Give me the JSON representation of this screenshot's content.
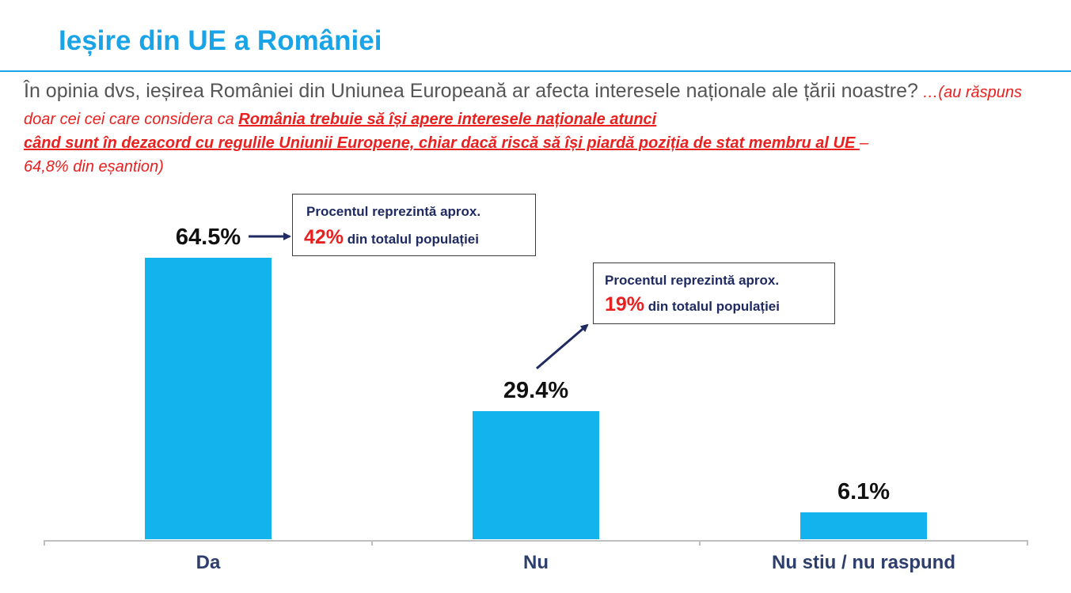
{
  "header": {
    "title": "Ieșire din UE a României",
    "question": "În opinia dvs, ieșirea României din Uniunea Europeană ar afecta interesele naționale ale țării noastre?",
    "note_prefix": " …(au răspuns doar cei cei care considera ca ",
    "note_underlined_line1": "România trebuie să își apere interesele naționale atunci",
    "note_underlined_line2": "când sunt în dezacord cu regulile Uniunii Europene, chiar dacă riscă să își piardă poziția de stat membru al UE ",
    "note_dash": "–",
    "note_suffix": "64,8% din eșantion)"
  },
  "chart_data": {
    "type": "bar",
    "categories": [
      "Da",
      "Nu",
      "Nu stiu / nu raspund"
    ],
    "values": [
      64.5,
      29.4,
      6.1
    ],
    "value_labels": [
      "64.5%",
      "29.4%",
      "6.1%"
    ],
    "ylim": [
      0,
      70
    ],
    "grid": false,
    "bar_color": "#13b4ee",
    "annotations": [
      {
        "target": "Da",
        "line1": "Procentul reprezintă aprox.",
        "pct": "42%",
        "line2": "din totalul populației"
      },
      {
        "target": "Nu",
        "line1": "Procentul reprezintă aprox.",
        "pct": "19%",
        "line2": "din totalul populației"
      }
    ]
  }
}
